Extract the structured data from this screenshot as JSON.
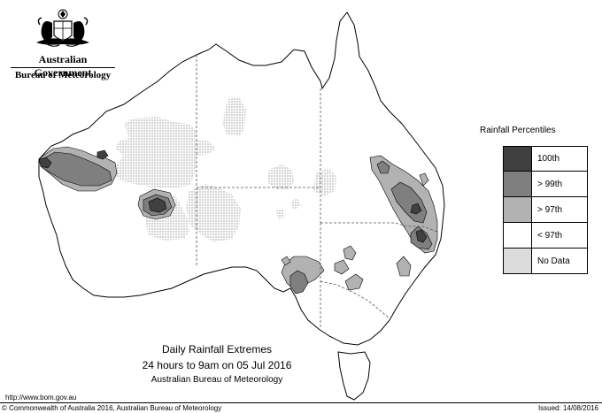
{
  "header": {
    "government": "Australian Government",
    "bureau": "Bureau of Meteorology"
  },
  "legend": {
    "title": "Rainfall Percentiles",
    "items": [
      {
        "label": "100th",
        "color": "#404040"
      },
      {
        "label": "> 99th",
        "color": "#7f7f7f"
      },
      {
        "label": "> 97th",
        "color": "#b2b2b2"
      },
      {
        "label": "< 97th",
        "color": "#ffffff"
      },
      {
        "label": "No Data",
        "color": "#dcdcdc"
      }
    ]
  },
  "caption": {
    "line1": "Daily Rainfall Extremes",
    "line2": "24 hours to 9am on 05 Jul 2016",
    "line3": "Australian Bureau of Meteorology"
  },
  "footer": {
    "url": "http://www.bom.gov.au",
    "copyright": "© Commonwealth of Australia 2016, Australian Bureau of Meteorology",
    "issued": "Issued: 14/08/2016"
  }
}
